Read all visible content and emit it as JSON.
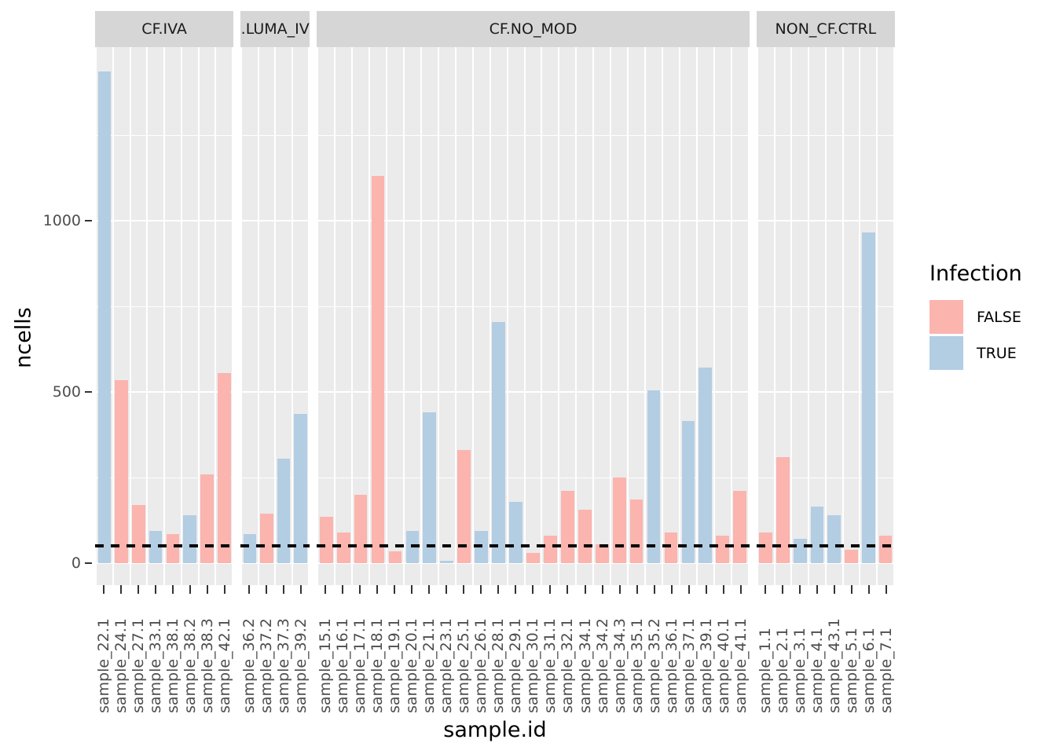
{
  "title_labels": {
    "y_axis": "ncells",
    "x_axis": "sample.id"
  },
  "colors": {
    "false_fill": "#FBB4AE",
    "true_fill": "#B3CDE3",
    "panel_bg": "#EBEBEB",
    "strip_bg": "#D6D6D6",
    "gridline": "#FFFFFF",
    "axis_text": "#4D4D4D",
    "tick_mark": "#333333",
    "dash_line": "#000000"
  },
  "legend": {
    "title": "Infection",
    "items": [
      {
        "label": "FALSE",
        "color": "#FBB4AE"
      },
      {
        "label": "TRUE",
        "color": "#B3CDE3"
      }
    ]
  },
  "chart_data": {
    "type": "bar",
    "title": "",
    "xlabel": "sample.id",
    "ylabel": "ncells",
    "ylim": [
      0,
      1507
    ],
    "y_major_ticks": [
      0,
      500,
      1000
    ],
    "y_minor_ticks": [
      250,
      750,
      1250
    ],
    "grid": "on",
    "legend_position": "right",
    "hline_dashed_at": 50,
    "facets": [
      {
        "label": "CF.IVA",
        "bars": [
          {
            "sample": "sample_22.1",
            "infection": true,
            "ncells": 1435
          },
          {
            "sample": "sample_24.1",
            "infection": false,
            "ncells": 535
          },
          {
            "sample": "sample_27.1",
            "infection": false,
            "ncells": 170
          },
          {
            "sample": "sample_33.1",
            "infection": true,
            "ncells": 95
          },
          {
            "sample": "sample_38.1",
            "infection": false,
            "ncells": 85
          },
          {
            "sample": "sample_38.2",
            "infection": true,
            "ncells": 140
          },
          {
            "sample": "sample_38.3",
            "infection": false,
            "ncells": 260
          },
          {
            "sample": "sample_42.1",
            "infection": false,
            "ncells": 555
          }
        ]
      },
      {
        "label": ".LUMA_IV",
        "bars": [
          {
            "sample": "sample_36.2",
            "infection": true,
            "ncells": 85
          },
          {
            "sample": "sample_37.2",
            "infection": false,
            "ncells": 145
          },
          {
            "sample": "sample_37.3",
            "infection": true,
            "ncells": 305
          },
          {
            "sample": "sample_39.2",
            "infection": true,
            "ncells": 435
          }
        ]
      },
      {
        "label": "CF.NO_MOD",
        "bars": [
          {
            "sample": "sample_15.1",
            "infection": false,
            "ncells": 135
          },
          {
            "sample": "sample_16.1",
            "infection": false,
            "ncells": 90
          },
          {
            "sample": "sample_17.1",
            "infection": false,
            "ncells": 200
          },
          {
            "sample": "sample_18.1",
            "infection": false,
            "ncells": 1130
          },
          {
            "sample": "sample_19.1",
            "infection": false,
            "ncells": 35
          },
          {
            "sample": "sample_20.1",
            "infection": true,
            "ncells": 95
          },
          {
            "sample": "sample_21.1",
            "infection": true,
            "ncells": 440
          },
          {
            "sample": "sample_23.1",
            "infection": true,
            "ncells": 8
          },
          {
            "sample": "sample_25.1",
            "infection": false,
            "ncells": 330
          },
          {
            "sample": "sample_26.1",
            "infection": true,
            "ncells": 95
          },
          {
            "sample": "sample_28.1",
            "infection": true,
            "ncells": 705
          },
          {
            "sample": "sample_29.1",
            "infection": true,
            "ncells": 180
          },
          {
            "sample": "sample_30.1",
            "infection": false,
            "ncells": 30
          },
          {
            "sample": "sample_31.1",
            "infection": false,
            "ncells": 80
          },
          {
            "sample": "sample_32.1",
            "infection": false,
            "ncells": 210
          },
          {
            "sample": "sample_34.1",
            "infection": false,
            "ncells": 155
          },
          {
            "sample": "sample_34.2",
            "infection": false,
            "ncells": 55
          },
          {
            "sample": "sample_34.3",
            "infection": false,
            "ncells": 250
          },
          {
            "sample": "sample_35.1",
            "infection": false,
            "ncells": 185
          },
          {
            "sample": "sample_35.2",
            "infection": true,
            "ncells": 505
          },
          {
            "sample": "sample_36.1",
            "infection": false,
            "ncells": 90
          },
          {
            "sample": "sample_37.1",
            "infection": true,
            "ncells": 415
          },
          {
            "sample": "sample_39.1",
            "infection": true,
            "ncells": 570
          },
          {
            "sample": "sample_40.1",
            "infection": false,
            "ncells": 80
          },
          {
            "sample": "sample_41.1",
            "infection": false,
            "ncells": 210
          }
        ]
      },
      {
        "label": "NON_CF.CTRL",
        "bars": [
          {
            "sample": "sample_1.1",
            "infection": false,
            "ncells": 90
          },
          {
            "sample": "sample_2.1",
            "infection": false,
            "ncells": 310
          },
          {
            "sample": "sample_3.1",
            "infection": true,
            "ncells": 70
          },
          {
            "sample": "sample_4.1",
            "infection": true,
            "ncells": 165
          },
          {
            "sample": "sample_43.1",
            "infection": true,
            "ncells": 140
          },
          {
            "sample": "sample_5.1",
            "infection": false,
            "ncells": 40
          },
          {
            "sample": "sample_6.1",
            "infection": true,
            "ncells": 965
          },
          {
            "sample": "sample_7.1",
            "infection": false,
            "ncells": 80
          }
        ]
      }
    ]
  }
}
